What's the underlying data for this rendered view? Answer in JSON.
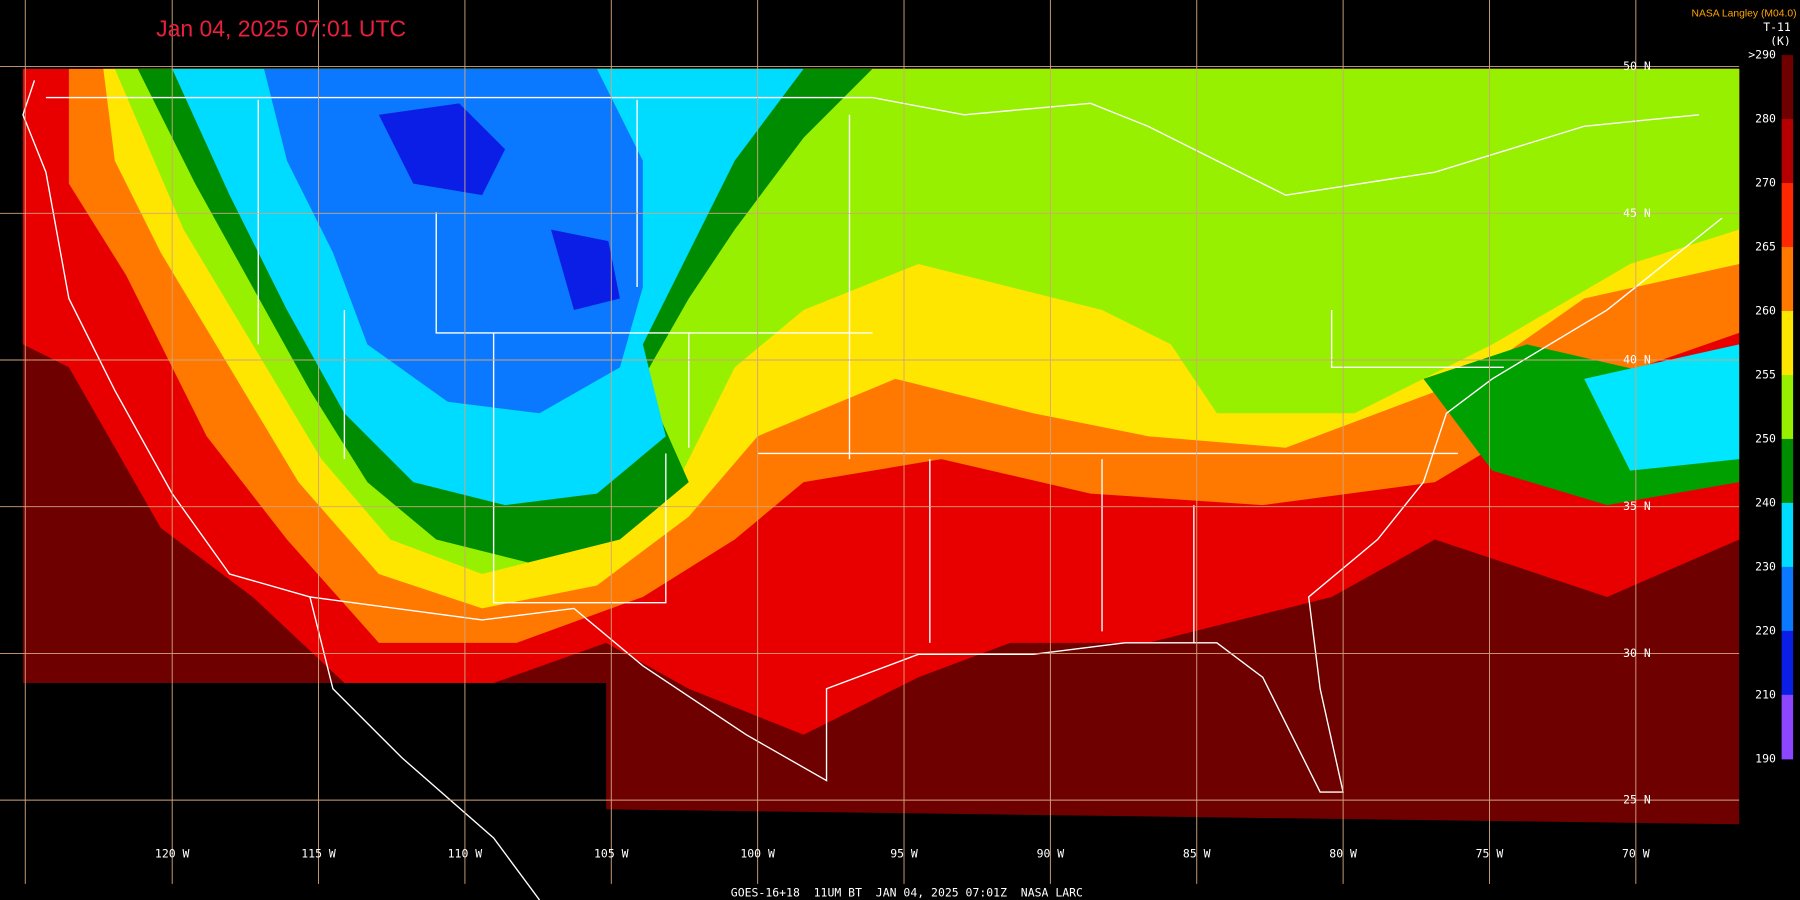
{
  "header": {
    "title": "Jan 04, 2025 07:01 UTC",
    "credit": "NASA Langley (M04.0)"
  },
  "legend": {
    "channel": "T-11",
    "unit": "(K)",
    "labels": [
      ">290",
      "280",
      "270",
      "265",
      "260",
      "255",
      "250",
      "240",
      "230",
      "220",
      "210",
      "190"
    ]
  },
  "latitude_labels": [
    "50 N",
    "45 N",
    "40 N",
    "35 N",
    "30 N",
    "25 N"
  ],
  "longitude_labels": [
    "120 W",
    "115 W",
    "110 W",
    "105 W",
    "100 W",
    "95 W",
    "90 W",
    "85 W",
    "80 W",
    "75 W",
    "70 W"
  ],
  "footer": "GOES-16+18  11UM BT  JAN 04, 2025 07:01Z  NASA LARC"
}
